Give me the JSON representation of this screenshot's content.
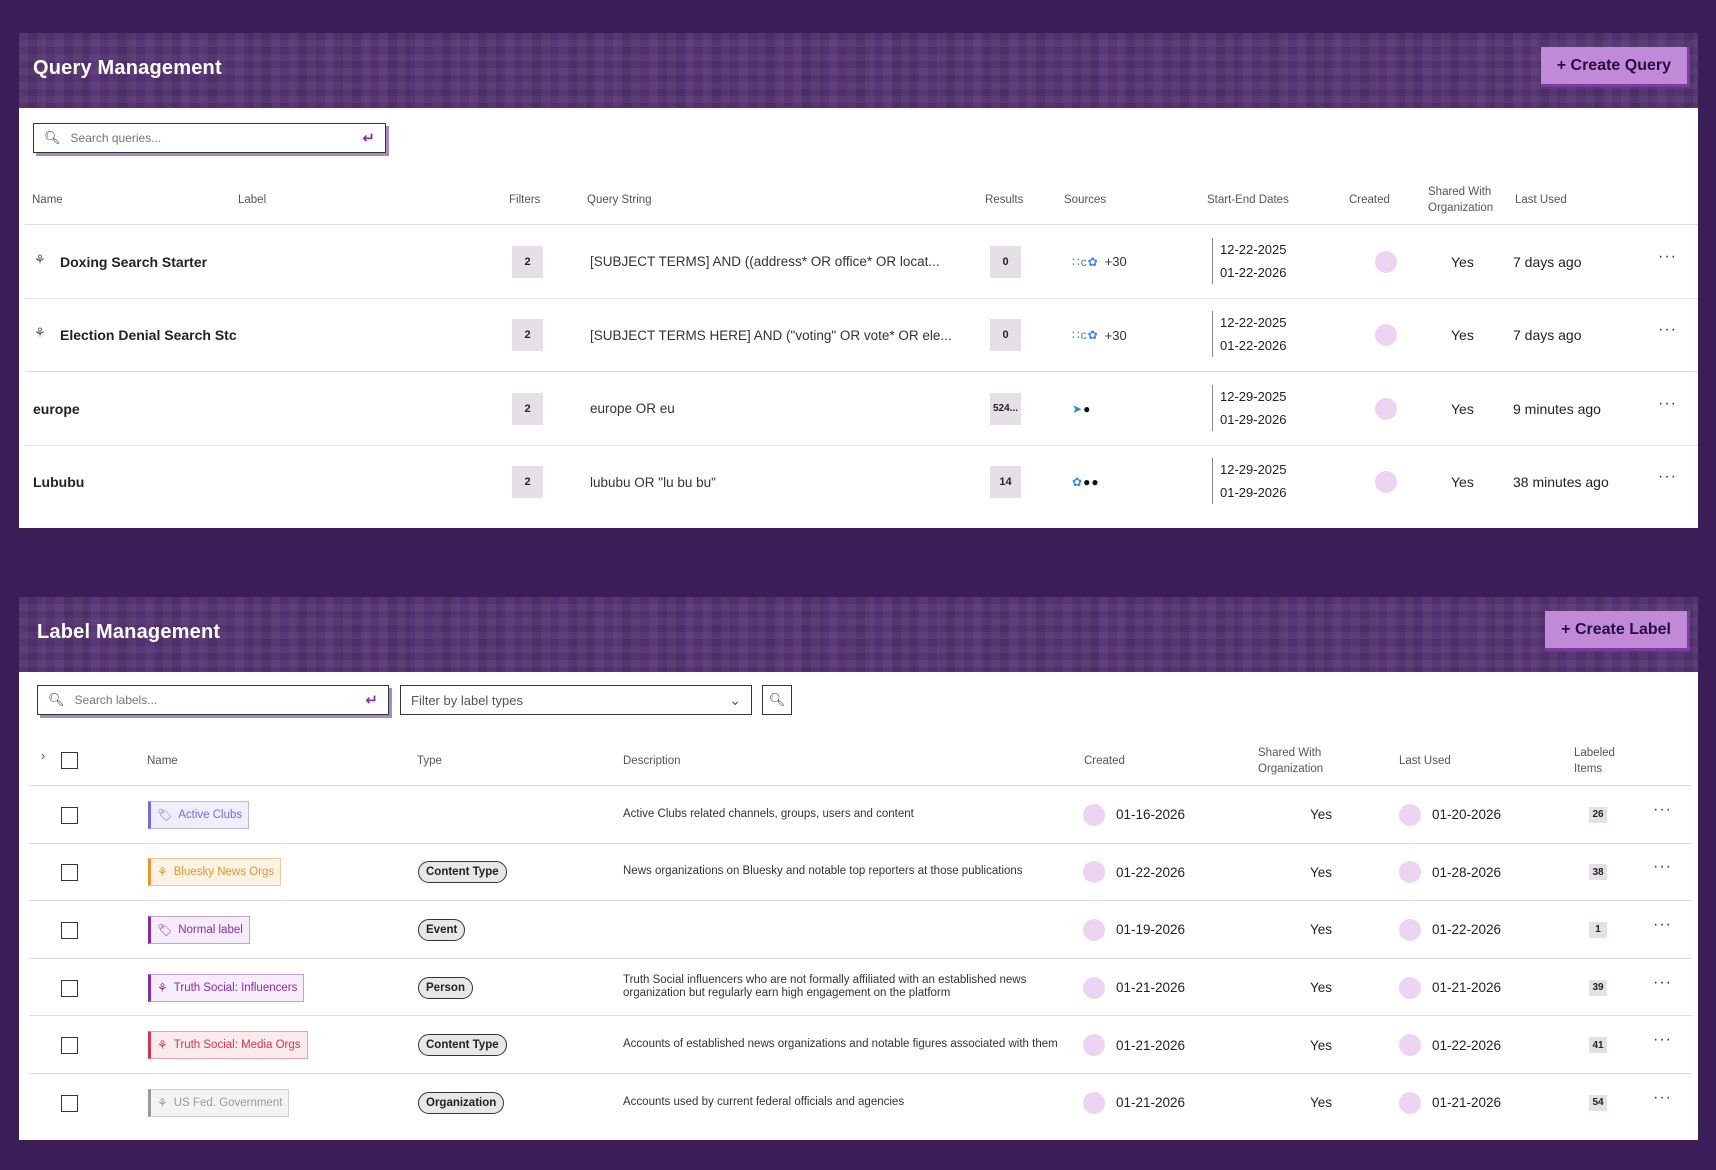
{
  "queries": {
    "title": "Query Management",
    "create_label": "+ Create Query",
    "search_placeholder": "Search queries...",
    "columns": {
      "name": "Name",
      "label": "Label",
      "filters": "Filters",
      "query_string": "Query String",
      "results": "Results",
      "sources": "Sources",
      "dates": "Start-End Dates",
      "created": "Created",
      "shared": "Shared With Organization",
      "last_used": "Last Used"
    },
    "rows": [
      {
        "name": "Doxing Search Starter",
        "filters": "2",
        "query": "[SUBJECT TERMS] AND ((address* OR office* OR locat...",
        "results": "0",
        "sources_extra": "+30",
        "start": "12-22-2025",
        "end": "01-22-2026",
        "shared": "Yes",
        "last_used": "7 days ago"
      },
      {
        "name": "Election Denial Search Stc",
        "filters": "2",
        "query": "[SUBJECT TERMS HERE] AND (\"voting\" OR vote* OR ele...",
        "results": "0",
        "sources_extra": "+30",
        "start": "12-22-2025",
        "end": "01-22-2026",
        "shared": "Yes",
        "last_used": "7 days ago"
      },
      {
        "name": "europe",
        "filters": "2",
        "query": "europe OR eu",
        "results": "524...",
        "sources_extra": "",
        "start": "12-29-2025",
        "end": "01-29-2026",
        "shared": "Yes",
        "last_used": "9 minutes ago"
      },
      {
        "name": "Lububu",
        "filters": "2",
        "query": "lububu OR \"lu bu bu\"",
        "results": "14",
        "sources_extra": "",
        "start": "12-29-2025",
        "end": "01-29-2026",
        "shared": "Yes",
        "last_used": "38 minutes ago"
      }
    ]
  },
  "labels": {
    "title": "Label Management",
    "create_label": "+ Create Label",
    "search_placeholder": "Search labels...",
    "filter_placeholder": "Filter by label types",
    "columns": {
      "name": "Name",
      "type": "Type",
      "description": "Description",
      "created": "Created",
      "shared": "Shared With Organization",
      "last_used": "Last Used",
      "items": "Labeled Items"
    },
    "rows": [
      {
        "name": "Active Clubs",
        "type": "",
        "description": "Active Clubs related channels, groups, users and content",
        "created": "01-16-2026",
        "shared": "Yes",
        "last_used": "01-20-2026",
        "items": "26",
        "color": "#6f6fe0",
        "bg": "#efeefc",
        "icon": "tag-icon"
      },
      {
        "name": "Bluesky News Orgs",
        "type": "Content Type",
        "description": "News organizations on Bluesky and notable top reporters at those publications",
        "created": "01-22-2026",
        "shared": "Yes",
        "last_used": "01-28-2026",
        "items": "38",
        "color": "#e8952b",
        "bg": "#fdf2e4",
        "icon": "broom-icon"
      },
      {
        "name": "Normal label",
        "type": "Event",
        "description": "",
        "created": "01-19-2026",
        "shared": "Yes",
        "last_used": "01-22-2026",
        "items": "1",
        "color": "#8a2ba8",
        "bg": "#f7ecfb",
        "icon": "tag-icon"
      },
      {
        "name": "Truth Social: Influencers",
        "type": "Person",
        "description": "Truth Social influencers who are not formally affiliated with an established news organization but regularly earn high engagement on the platform",
        "created": "01-21-2026",
        "shared": "Yes",
        "last_used": "01-21-2026",
        "items": "39",
        "color": "#8a2ba8",
        "bg": "#f7ecfb",
        "icon": "broom-icon"
      },
      {
        "name": "Truth Social: Media Orgs",
        "type": "Content Type",
        "description": "Accounts of established news organizations and notable figures associated with them",
        "created": "01-21-2026",
        "shared": "Yes",
        "last_used": "01-22-2026",
        "items": "41",
        "color": "#d2364d",
        "bg": "#fcebed",
        "icon": "broom-icon"
      },
      {
        "name": "US Fed. Government",
        "type": "Organization",
        "description": "Accounts used by current federal officials and agencies",
        "created": "01-21-2026",
        "shared": "Yes",
        "last_used": "01-21-2026",
        "items": "54",
        "color": "#9a9a9a",
        "bg": "#f3f3f3",
        "icon": "broom-icon"
      }
    ]
  }
}
